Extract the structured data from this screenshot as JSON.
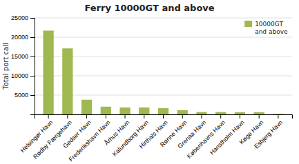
{
  "chart_data": {
    "type": "bar",
    "title": "Ferry 10000GT and above",
    "ylabel": "Total port call",
    "categories": [
      "Helsingør Havn",
      "Rødby Færgehavn",
      "Gedser Havn",
      "Frederikshavn Havn",
      "Århus Havn",
      "Kalundborg Havn",
      "Hirthals Havn",
      "Rønne Havn",
      "Grenaa Havn",
      "Københavns Havn",
      "Hanstholm Havn",
      "Køge Havn",
      "Esbjerg Havn"
    ],
    "series": [
      {
        "name": "10000GT\nand above",
        "color": "#a0b850",
        "values": [
          21700,
          17100,
          3800,
          2000,
          1800,
          1800,
          1600,
          1100,
          600,
          600,
          550,
          550,
          150
        ]
      }
    ],
    "ylim": [
      0,
      25000
    ],
    "yticks": [
      {
        "value": 0,
        "label": null
      },
      5000,
      10000,
      15000,
      20000,
      25000
    ],
    "grid": true,
    "legend": "upper right"
  }
}
